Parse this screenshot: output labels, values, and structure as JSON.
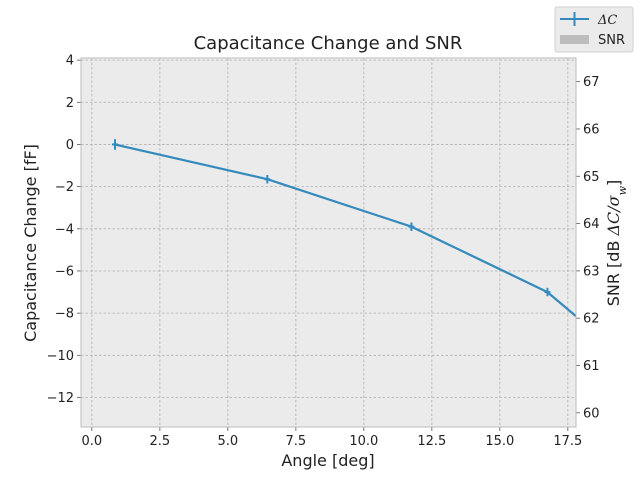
{
  "chart_data": {
    "type": "line",
    "title": "Capacitance Change and SNR",
    "xlabel": "Angle [deg]",
    "ylabel": "Capacitance Change [fF]",
    "y2label_prefix": "SNR [dB ",
    "y2label_math": "ΔC/σ",
    "y2label_sub": "w",
    "y2label_suffix": "]",
    "xlim": [
      -0.4,
      17.8
    ],
    "ylim": [
      -13.4,
      4.1
    ],
    "y2lim": [
      59.7,
      67.5
    ],
    "xticks": [
      "0.0",
      "2.5",
      "5.0",
      "7.5",
      "10.0",
      "12.5",
      "15.0",
      "17.5"
    ],
    "yticks": [
      "4",
      "2",
      "0",
      "−2",
      "−4",
      "−6",
      "−8",
      "−10",
      "−12"
    ],
    "y2ticks": [
      "67",
      "66",
      "65",
      "64",
      "63",
      "62",
      "61",
      "60"
    ],
    "grid": true,
    "legend_position": "top-right",
    "series": [
      {
        "name": "ΔC",
        "axis": "left",
        "kind": "line-errorbar",
        "color": "#348abd",
        "x": [
          0.85,
          6.45,
          11.75,
          16.75,
          18.5
        ],
        "y": [
          0.0,
          -1.65,
          -3.9,
          -7.0,
          -8.9
        ],
        "yerr": [
          0.25,
          0.2,
          0.2,
          0.2,
          0.0
        ],
        "marked": [
          true,
          true,
          true,
          true,
          false
        ]
      },
      {
        "name": "SNR",
        "axis": "right",
        "kind": "bar",
        "color": "#bdbdbd",
        "x": [],
        "y": []
      }
    ]
  },
  "colors": {
    "plot_background": "#ebebeb",
    "grid": "#b0b0b0",
    "axes_edge": "#bcbcbc"
  }
}
